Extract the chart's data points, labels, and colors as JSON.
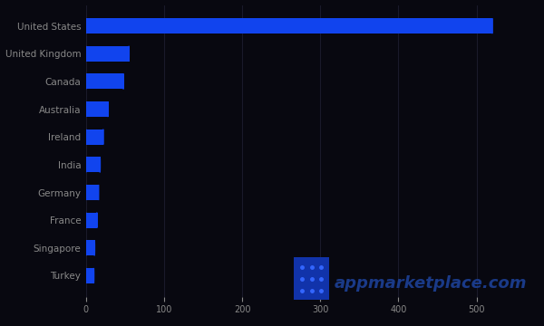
{
  "categories": [
    "United States",
    "United Kingdom",
    "Canada",
    "Australia",
    "Ireland",
    "India",
    "Germany",
    "France",
    "Singapore",
    "Turkey"
  ],
  "values": [
    520,
    55,
    48,
    28,
    22,
    18,
    16,
    14,
    11,
    10
  ],
  "bar_color": "#1144ee",
  "background_color": "#080810",
  "text_color": "#888888",
  "xlim": [
    0,
    580
  ],
  "xticks": [
    0,
    100,
    200,
    300,
    400,
    500
  ],
  "watermark_text": "appmarketplace.com",
  "watermark_color": "#1a3a88",
  "watermark_fontsize": 13,
  "label_fontsize": 7.5,
  "tick_fontsize": 7
}
